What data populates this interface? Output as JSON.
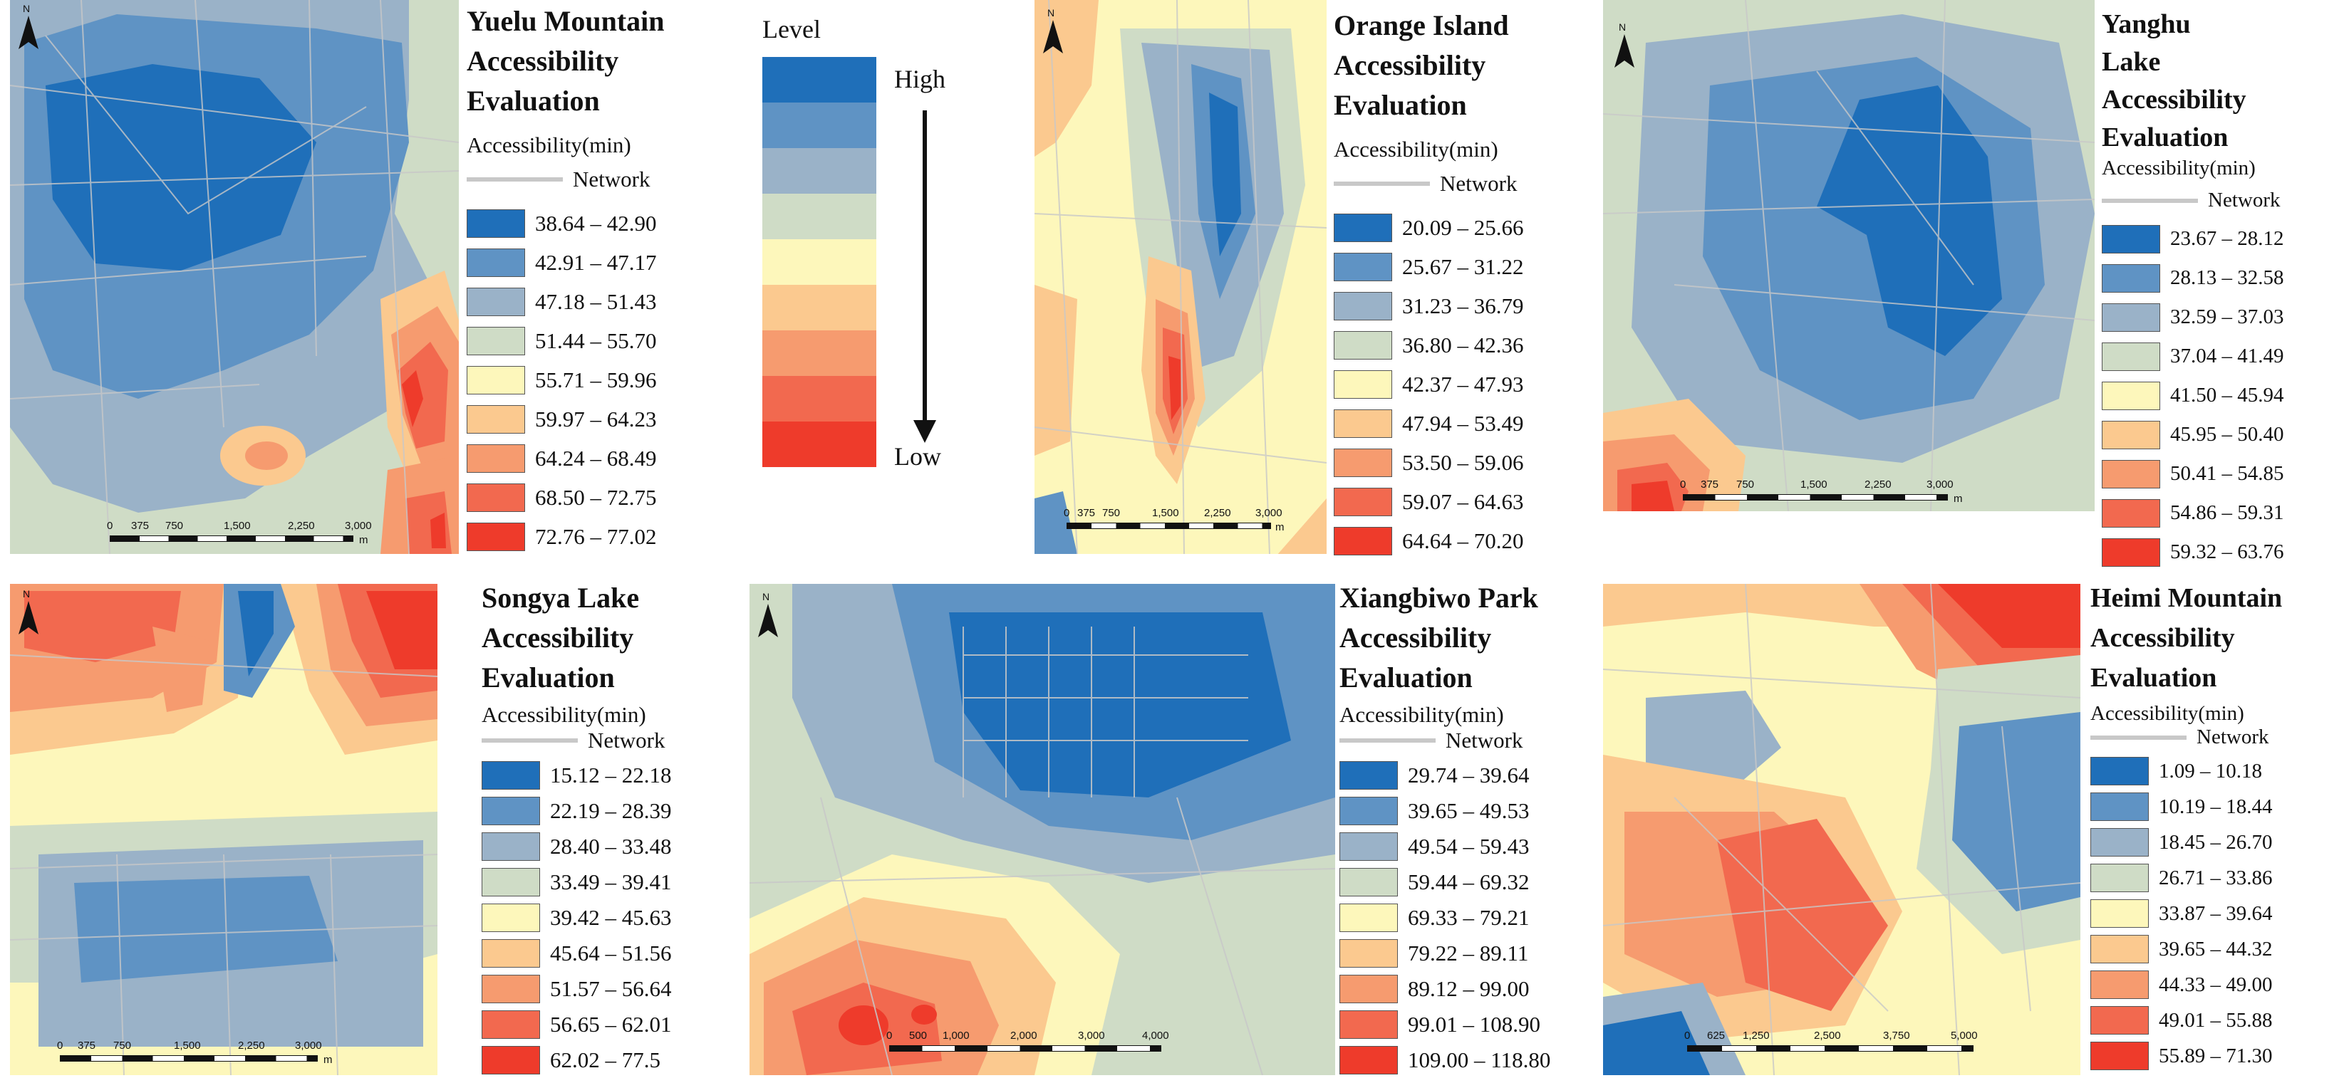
{
  "palette": {
    "c1": "#1f6fb9",
    "c2": "#5f93c4",
    "c3": "#9ab2c8",
    "c4": "#cfdcc6",
    "c5": "#fdf7bb",
    "c6": "#fbc98f",
    "c7": "#f69b6f",
    "c8": "#f2694f",
    "c9": "#ee3b2b",
    "network": "#c8c8c8"
  },
  "key": {
    "title": "Level",
    "high": "High",
    "low": "Low"
  },
  "maps": [
    {
      "id": "yuelu",
      "title": "Yuelu Mountain\nAccessibility\nEvaluation",
      "accessibility_label": "Accessibility(min)",
      "network_label": "Network",
      "north_label": "N",
      "scale_ticks": [
        "0",
        "375",
        "750",
        "1,500",
        "2,250",
        "3,000"
      ],
      "scale_unit": "m",
      "legend": [
        "38.64 – 42.90",
        "42.91 – 47.17",
        "47.18 – 51.43",
        "51.44 – 55.70",
        "55.71 – 59.96",
        "59.97 – 64.23",
        "64.24 – 68.49",
        "68.50 – 72.75",
        "72.76 – 77.02"
      ]
    },
    {
      "id": "orange",
      "title": "Orange Island\nAccessibility\nEvaluation",
      "accessibility_label": "Accessibility(min)",
      "network_label": "Network",
      "north_label": "N",
      "scale_ticks": [
        "0",
        "375",
        "750",
        "1,500",
        "2,250",
        "3,000"
      ],
      "scale_unit": "m",
      "legend": [
        "20.09 – 25.66",
        "25.67 – 31.22",
        "31.23 – 36.79",
        "36.80 – 42.36",
        "42.37 – 47.93",
        "47.94 – 53.49",
        "53.50 – 59.06",
        "59.07 – 64.63",
        "64.64 – 70.20"
      ]
    },
    {
      "id": "yanghu",
      "title": "Yanghu\nLake\nAccessibility\nEvaluation",
      "accessibility_label": "Accessibility(min)",
      "network_label": "Network",
      "north_label": "N",
      "scale_ticks": [
        "0",
        "375",
        "750",
        "1,500",
        "2,250",
        "3,000"
      ],
      "scale_unit": "m",
      "legend": [
        "23.67 – 28.12",
        "28.13 – 32.58",
        "32.59 – 37.03",
        "37.04 – 41.49",
        "41.50 – 45.94",
        "45.95 – 50.40",
        "50.41 – 54.85",
        "54.86 – 59.31",
        "59.32 – 63.76"
      ]
    },
    {
      "id": "songya",
      "title": "Songya Lake\nAccessibility\nEvaluation",
      "accessibility_label": "Accessibility(min)",
      "network_label": "Network",
      "north_label": "N",
      "scale_ticks": [
        "0",
        "375",
        "750",
        "1,500",
        "2,250",
        "3,000"
      ],
      "scale_unit": "m",
      "legend": [
        "15.12 – 22.18",
        "22.19 – 28.39",
        "28.40 – 33.48",
        "33.49 – 39.41",
        "39.42 – 45.63",
        "45.64 – 51.56",
        "51.57 – 56.64",
        "56.65 – 62.01",
        "62.02 – 77.5"
      ]
    },
    {
      "id": "xiangbiwo",
      "title": "Xiangbiwo Park\nAccessibility\nEvaluation",
      "accessibility_label": "Accessibility(min)",
      "network_label": "Network",
      "north_label": "N",
      "scale_ticks": [
        "0",
        "500",
        "1,000",
        "2,000",
        "3,000",
        "4,000"
      ],
      "scale_unit": "m",
      "legend": [
        "29.74 – 39.64",
        "39.65 – 49.53",
        "49.54 – 59.43",
        "59.44 – 69.32",
        "69.33 – 79.21",
        "79.22 – 89.11",
        "89.12 – 99.00",
        "99.01 – 108.90",
        "109.00 – 118.80"
      ]
    },
    {
      "id": "heimi",
      "title": "Heimi Mountain\nAccessibility\nEvaluation",
      "accessibility_label": "Accessibility(min)",
      "network_label": "Network",
      "north_label": "N",
      "scale_ticks": [
        "0",
        "625",
        "1,250",
        "2,500",
        "3,750",
        "5,000"
      ],
      "scale_unit": "m",
      "legend": [
        "1.09 – 10.18",
        "10.19 – 18.44",
        "18.45 – 26.70",
        "26.71 – 33.86",
        "33.87 – 39.64",
        "39.65 – 44.32",
        "44.33 – 49.00",
        "49.01 – 55.88",
        "55.89 – 71.30"
      ]
    }
  ]
}
